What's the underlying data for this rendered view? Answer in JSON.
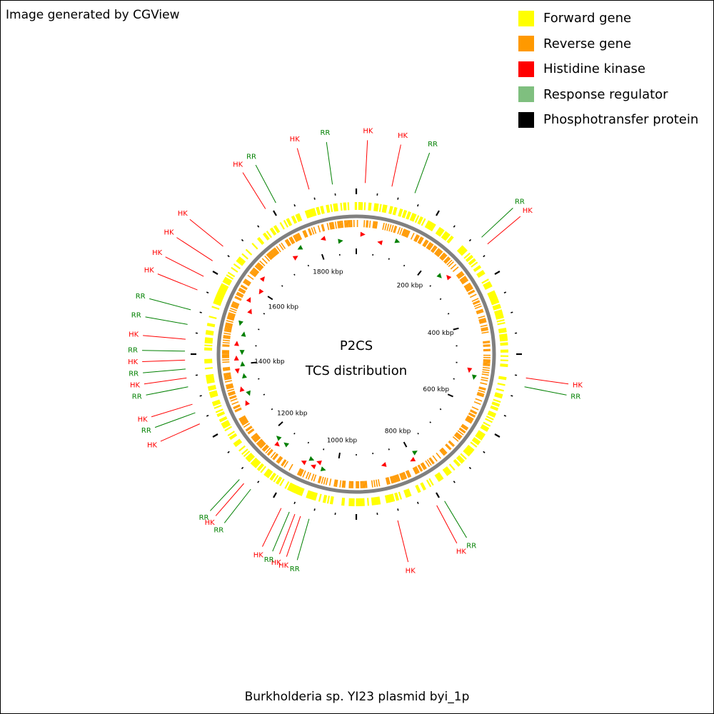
{
  "credit": "Image generated by CGView",
  "footer": "Burkholderia sp. YI23 plasmid byi_1p",
  "center": {
    "line1": "P2CS",
    "line2": "TCS distribution"
  },
  "legend": [
    {
      "label": "Forward gene",
      "color": "#ffff00"
    },
    {
      "label": "Reverse gene",
      "color": "#ff9900"
    },
    {
      "label": "Histidine kinase",
      "color": "#ff0000"
    },
    {
      "label": "Response regulator",
      "color": "#7fbf7f"
    },
    {
      "label": "Phosphotransfer protein",
      "color": "#000000"
    }
  ],
  "colors": {
    "hk": "#ff0000",
    "rr": "#008000",
    "backbone": "#808080",
    "forward": "#ffff00",
    "reverse": "#ff9900"
  },
  "ruler": {
    "unit": "kbp",
    "total_kbp": 1900,
    "major_step_kbp": 200,
    "labels": [
      {
        "kbp": 200,
        "text": "200 kbp"
      },
      {
        "kbp": 400,
        "text": "400 kbp"
      },
      {
        "kbp": 600,
        "text": "600 kbp"
      },
      {
        "kbp": 800,
        "text": "800 kbp"
      },
      {
        "kbp": 1000,
        "text": "1000 kbp"
      },
      {
        "kbp": 1200,
        "text": "1200 kbp"
      },
      {
        "kbp": 1400,
        "text": "1400 kbp"
      },
      {
        "kbp": 1600,
        "text": "1600 kbp"
      },
      {
        "kbp": 1800,
        "text": "1800 kbp"
      }
    ]
  },
  "features": [
    {
      "label": "HK",
      "type": "hk",
      "deg": -16
    },
    {
      "label": "RR",
      "type": "rr",
      "deg": -8
    },
    {
      "label": "HK",
      "type": "hk",
      "deg": 3
    },
    {
      "label": "HK",
      "type": "hk",
      "deg": 12
    },
    {
      "label": "RR",
      "type": "rr",
      "deg": 20
    },
    {
      "label": "RR",
      "type": "rr",
      "deg": 47
    },
    {
      "label": "HK",
      "type": "hk",
      "deg": 50
    },
    {
      "label": "HK",
      "type": "hk",
      "deg": 98
    },
    {
      "label": "RR",
      "type": "rr",
      "deg": 101
    },
    {
      "label": "RR",
      "type": "rr",
      "deg": 149
    },
    {
      "label": "HK",
      "type": "hk",
      "deg": 152
    },
    {
      "label": "HK",
      "type": "hk",
      "deg": 166
    },
    {
      "label": "RR",
      "type": "rr",
      "deg": 196
    },
    {
      "label": "HK",
      "type": "hk",
      "deg": 199
    },
    {
      "label": "HK",
      "type": "hk",
      "deg": 201
    },
    {
      "label": "RR",
      "type": "rr",
      "deg": 203
    },
    {
      "label": "HK",
      "type": "hk",
      "deg": 206
    },
    {
      "label": "RR",
      "type": "rr",
      "deg": 218
    },
    {
      "label": "HK",
      "type": "hk",
      "deg": 221
    },
    {
      "label": "RR",
      "type": "rr",
      "deg": 223
    },
    {
      "label": "HK",
      "type": "hk",
      "deg": 246
    },
    {
      "label": "RR",
      "type": "rr",
      "deg": 250
    },
    {
      "label": "HK",
      "type": "hk",
      "deg": 253
    },
    {
      "label": "RR",
      "type": "rr",
      "deg": 259
    },
    {
      "label": "HK",
      "type": "hk",
      "deg": 262
    },
    {
      "label": "RR",
      "type": "rr",
      "deg": 265
    },
    {
      "label": "HK",
      "type": "hk",
      "deg": 268
    },
    {
      "label": "RR",
      "type": "rr",
      "deg": 271
    },
    {
      "label": "HK",
      "type": "hk",
      "deg": 275
    },
    {
      "label": "RR",
      "type": "rr",
      "deg": 280
    },
    {
      "label": "RR",
      "type": "rr",
      "deg": 285
    },
    {
      "label": "HK",
      "type": "hk",
      "deg": 292
    },
    {
      "label": "HK",
      "type": "hk",
      "deg": 297
    },
    {
      "label": "HK",
      "type": "hk",
      "deg": 303
    },
    {
      "label": "HK",
      "type": "hk",
      "deg": 309
    },
    {
      "label": "HK",
      "type": "hk",
      "deg": 328
    },
    {
      "label": "RR",
      "type": "rr",
      "deg": 332
    }
  ]
}
